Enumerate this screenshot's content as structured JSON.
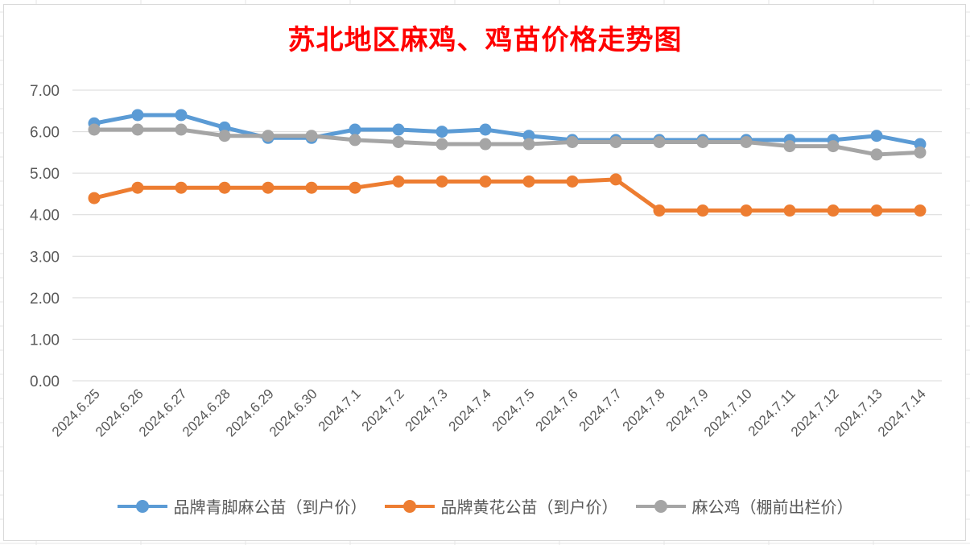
{
  "chart_data": {
    "type": "line",
    "title": "苏北地区麻鸡、鸡苗价格走势图",
    "xlabel": "",
    "ylabel": "",
    "ylim": [
      0,
      7
    ],
    "yticks": [
      "0.00",
      "1.00",
      "2.00",
      "3.00",
      "4.00",
      "5.00",
      "6.00",
      "7.00"
    ],
    "grid": true,
    "legend_position": "bottom",
    "categories": [
      "2024.6.25",
      "2024.6.26",
      "2024.6.27",
      "2024.6.28",
      "2024.6.29",
      "2024.6.30",
      "2024.7.1",
      "2024.7.2",
      "2024.7.3",
      "2024.7.4",
      "2024.7.5",
      "2024.7.6",
      "2024.7.7",
      "2024.7.8",
      "2024.7.9",
      "2024.7.10",
      "2024.7.11",
      "2024.7.12",
      "2024.7.13",
      "2024.7.14"
    ],
    "series": [
      {
        "name": "品牌青脚麻公苗（到户价）",
        "color": "#5b9bd5",
        "values": [
          6.2,
          6.4,
          6.4,
          6.1,
          5.85,
          5.85,
          6.05,
          6.05,
          6.0,
          6.05,
          5.9,
          5.8,
          5.8,
          5.8,
          5.8,
          5.8,
          5.8,
          5.8,
          5.9,
          5.7
        ]
      },
      {
        "name": "品牌黄花公苗（到户价）",
        "color": "#ed7d31",
        "values": [
          4.4,
          4.65,
          4.65,
          4.65,
          4.65,
          4.65,
          4.65,
          4.8,
          4.8,
          4.8,
          4.8,
          4.8,
          4.85,
          4.1,
          4.1,
          4.1,
          4.1,
          4.1,
          4.1,
          4.1
        ]
      },
      {
        "name": "麻公鸡（棚前出栏价）",
        "color": "#a5a5a5",
        "values": [
          6.05,
          6.05,
          6.05,
          5.9,
          5.9,
          5.9,
          5.8,
          5.75,
          5.7,
          5.7,
          5.7,
          5.75,
          5.75,
          5.75,
          5.75,
          5.75,
          5.65,
          5.65,
          5.45,
          5.5
        ]
      }
    ]
  }
}
